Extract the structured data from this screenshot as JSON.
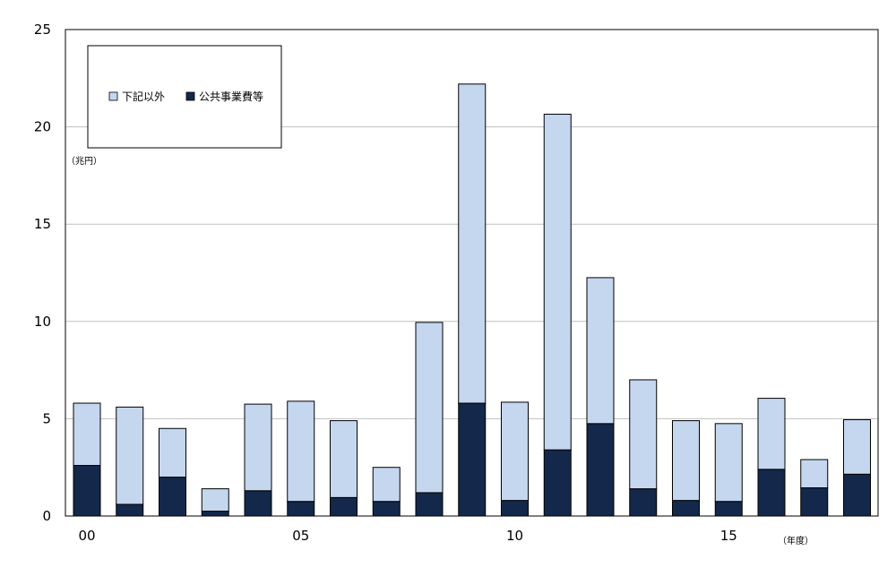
{
  "chart_data": {
    "type": "bar",
    "stacked": true,
    "categories": [
      "00",
      "01",
      "02",
      "03",
      "04",
      "05",
      "06",
      "07",
      "08",
      "09",
      "10",
      "11",
      "12",
      "13",
      "14",
      "15",
      "16",
      "17",
      "18"
    ],
    "x_tick_labels": [
      "00",
      "05",
      "10",
      "15"
    ],
    "series": [
      {
        "name": "公共事業費等",
        "color": "#13284a",
        "values": [
          2.6,
          0.6,
          2.0,
          0.25,
          1.3,
          0.75,
          0.95,
          0.75,
          1.2,
          5.8,
          0.8,
          3.4,
          4.75,
          1.4,
          0.8,
          0.75,
          2.4,
          1.45,
          2.15
        ]
      },
      {
        "name": "下記以外",
        "color": "#c5d6ef",
        "values": [
          3.2,
          5.0,
          2.5,
          1.15,
          4.45,
          5.15,
          3.95,
          1.75,
          8.75,
          16.4,
          5.05,
          17.25,
          7.5,
          5.6,
          4.1,
          4.0,
          3.65,
          1.45,
          2.8
        ]
      }
    ],
    "ylim": [
      0,
      25
    ],
    "y_ticks": [
      0,
      5,
      10,
      15,
      20,
      25
    ],
    "y_unit": "（兆円）",
    "x_unit": "（年度）",
    "legend_position": "top-left",
    "grid": "horizontal"
  }
}
